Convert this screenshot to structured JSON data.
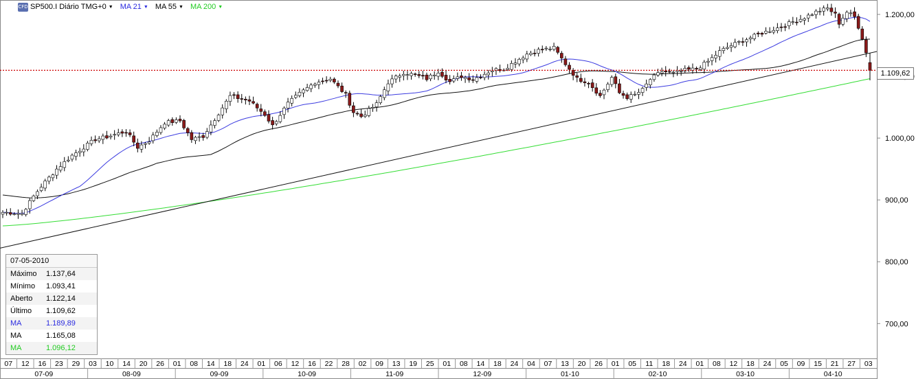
{
  "header": {
    "symbol_label": "SP500.I Diário TMG+0",
    "icon_text": "CFD",
    "indicators": [
      {
        "label": "MA 21",
        "color": "#2a2adf"
      },
      {
        "label": "MA 55",
        "color": "#000000"
      },
      {
        "label": "MA 200",
        "color": "#22cc22"
      }
    ]
  },
  "colors": {
    "bull_candle": "#ffffff",
    "bear_candle": "#8b1a1a",
    "ma21": "#3b3be0",
    "ma55": "#111111",
    "ma200": "#33dd33",
    "trendline": "#111111",
    "price_line": "#cc0000"
  },
  "price_marker": "1.109,62",
  "info_panel": {
    "date": "07-05-2010",
    "rows": [
      {
        "label": "Máximo",
        "value": "1.137,64",
        "color": "#000000"
      },
      {
        "label": "Mínimo",
        "value": "1.093,41",
        "color": "#000000"
      },
      {
        "label": "Aberto",
        "value": "1.122,14",
        "color": "#000000"
      },
      {
        "label": "Último",
        "value": "1.109,62",
        "color": "#000000"
      },
      {
        "label": "MA",
        "value": "1.189,89",
        "color": "#2a2adf"
      },
      {
        "label": "MA",
        "value": "1.165,08",
        "color": "#000000"
      },
      {
        "label": "MA",
        "value": "1.096,12",
        "color": "#22cc22"
      }
    ]
  },
  "chart_data": {
    "type": "candlestick",
    "title": "SP500.I Diário TMG+0",
    "y_ticks": [
      "1.200,00",
      "1.100,00",
      "1.000,00",
      "900,00",
      "800,00",
      "700,00"
    ],
    "y_tick_values": [
      1200,
      1100,
      1000,
      900,
      800,
      700
    ],
    "ylim": [
      647,
      1220
    ],
    "day_labels": [
      "07",
      "12",
      "16",
      "23",
      "29",
      "03",
      "10",
      "14",
      "20",
      "26",
      "01",
      "08",
      "14",
      "18",
      "24",
      "01",
      "06",
      "12",
      "16",
      "22",
      "28",
      "02",
      "09",
      "13",
      "19",
      "25",
      "01",
      "08",
      "14",
      "18",
      "24",
      "04",
      "07",
      "13",
      "20",
      "26",
      "01",
      "05",
      "11",
      "18",
      "24",
      "01",
      "08",
      "12",
      "18",
      "24",
      "05",
      "09",
      "15",
      "21",
      "27",
      "03"
    ],
    "month_labels": [
      "07-09",
      "08-09",
      "09-09",
      "10-09",
      "11-09",
      "12-09",
      "01-10",
      "02-10",
      "03-10",
      "04-10"
    ],
    "price_line": 1109.62,
    "closes_anchor": [
      [
        0,
        880
      ],
      [
        5,
        878
      ],
      [
        8,
        906
      ],
      [
        10,
        922
      ],
      [
        14,
        950
      ],
      [
        18,
        972
      ],
      [
        24,
        998
      ],
      [
        27,
        1002
      ],
      [
        32,
        1011
      ],
      [
        35,
        985
      ],
      [
        38,
        996
      ],
      [
        42,
        1025
      ],
      [
        46,
        1028
      ],
      [
        49,
        998
      ],
      [
        52,
        1003
      ],
      [
        56,
        1040
      ],
      [
        59,
        1068
      ],
      [
        64,
        1060
      ],
      [
        68,
        1038
      ],
      [
        70,
        1020
      ],
      [
        74,
        1056
      ],
      [
        77,
        1072
      ],
      [
        81,
        1090
      ],
      [
        85,
        1096
      ],
      [
        89,
        1070
      ],
      [
        91,
        1042
      ],
      [
        93,
        1035
      ],
      [
        97,
        1055
      ],
      [
        100,
        1090
      ],
      [
        104,
        1106
      ],
      [
        107,
        1102
      ],
      [
        110,
        1096
      ],
      [
        113,
        1108
      ],
      [
        116,
        1091
      ],
      [
        119,
        1100
      ],
      [
        122,
        1095
      ],
      [
        127,
        1110
      ],
      [
        130,
        1112
      ],
      [
        133,
        1124
      ],
      [
        136,
        1136
      ],
      [
        139,
        1142
      ],
      [
        143,
        1146
      ],
      [
        146,
        1120
      ],
      [
        149,
        1096
      ],
      [
        152,
        1090
      ],
      [
        155,
        1068
      ],
      [
        158,
        1098
      ],
      [
        160,
        1073
      ],
      [
        162,
        1066
      ],
      [
        164,
        1070
      ],
      [
        166,
        1078
      ],
      [
        168,
        1095
      ],
      [
        171,
        1108
      ],
      [
        174,
        1105
      ],
      [
        177,
        1110
      ],
      [
        180,
        1112
      ],
      [
        183,
        1124
      ],
      [
        186,
        1140
      ],
      [
        189,
        1150
      ],
      [
        193,
        1160
      ],
      [
        197,
        1170
      ],
      [
        201,
        1178
      ],
      [
        205,
        1188
      ],
      [
        208,
        1195
      ],
      [
        211,
        1204
      ],
      [
        214,
        1210
      ],
      [
        216,
        1200
      ],
      [
        217,
        1186
      ],
      [
        219,
        1204
      ],
      [
        221,
        1196
      ],
      [
        222,
        1180
      ],
      [
        223,
        1162
      ],
      [
        224,
        1138
      ],
      [
        225,
        1109.62
      ]
    ],
    "ma_labels": [
      "MA 21",
      "MA 55",
      "MA 200"
    ],
    "last_bar": {
      "date": "07-05-2010",
      "high": 1137.64,
      "low": 1093.41,
      "open": 1122.14,
      "close": 1109.62,
      "ma21": 1189.89,
      "ma55": 1165.08,
      "ma200": 1096.12
    }
  }
}
